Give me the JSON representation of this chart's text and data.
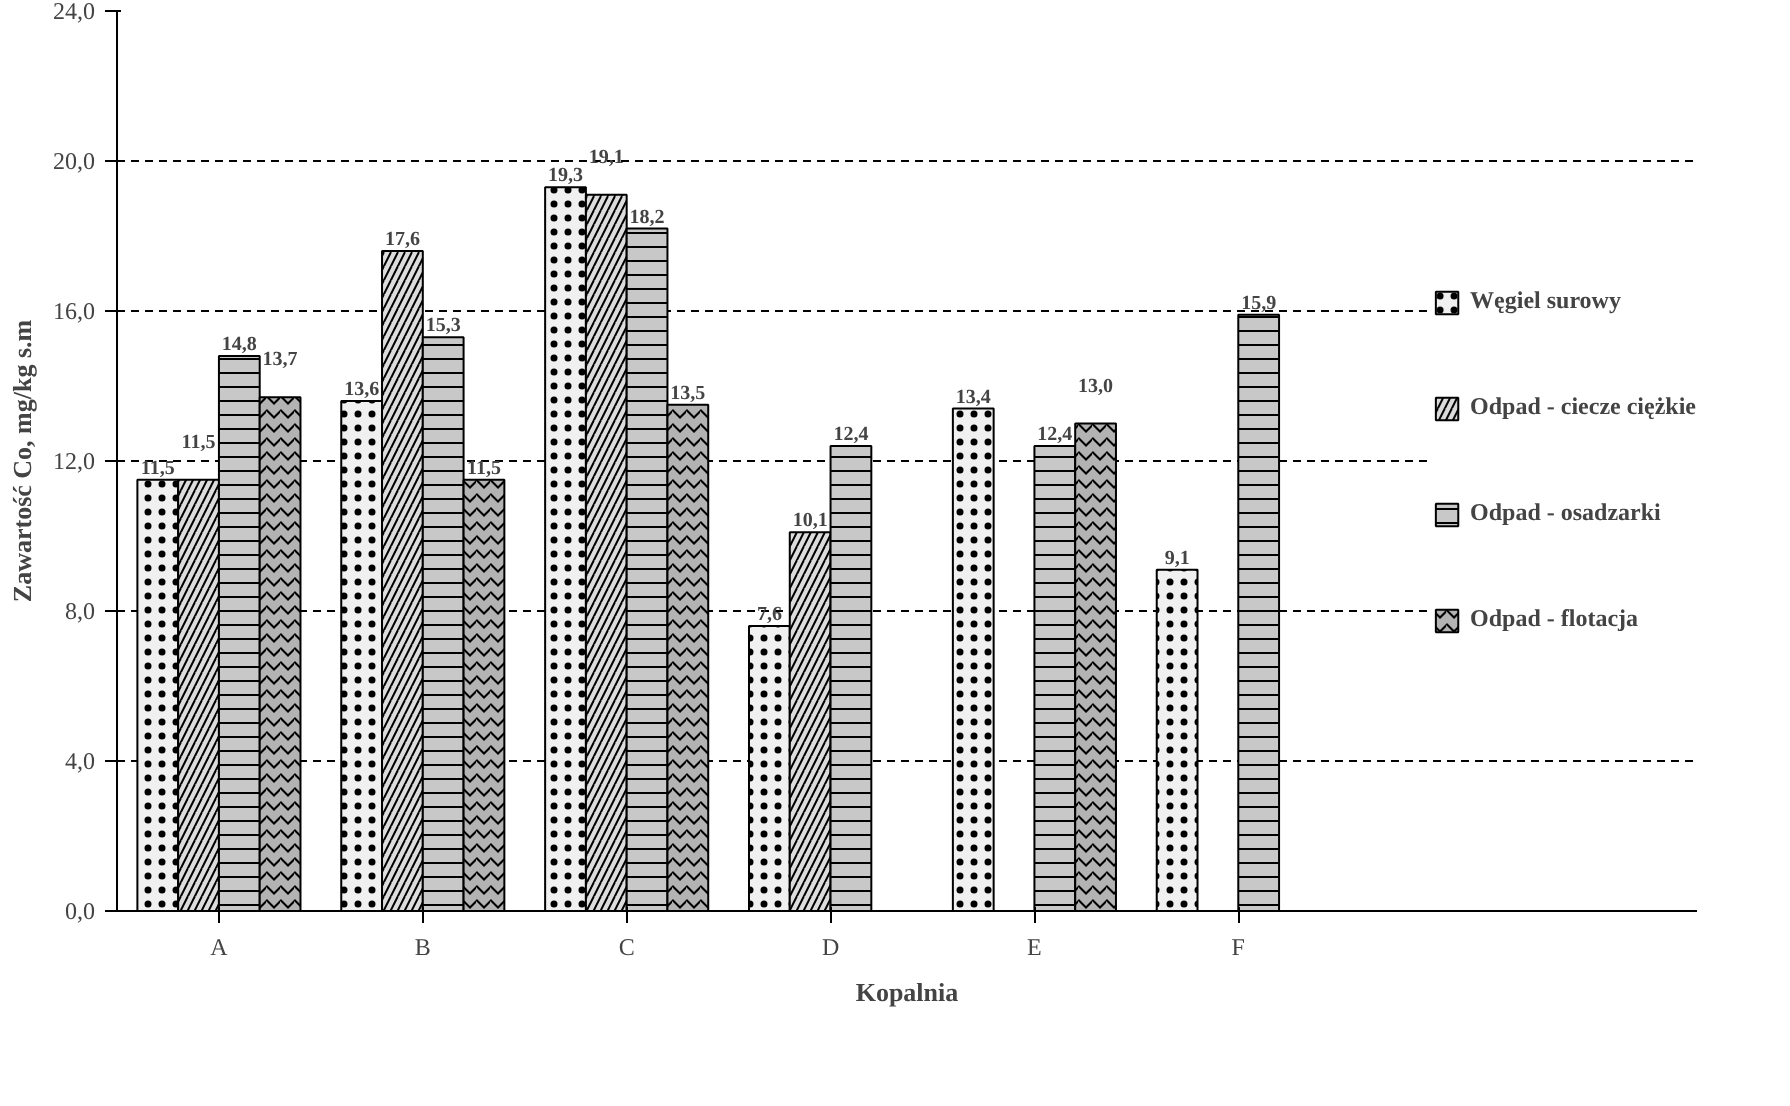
{
  "chart_data": {
    "type": "bar",
    "xlabel": "Kopalnia",
    "ylabel": "Zawartość Co, mg/kg s.m",
    "categories": [
      "A",
      "B",
      "C",
      "D",
      "E",
      "F"
    ],
    "series": [
      {
        "name": "Węgiel surowy",
        "color": "#f0f0f0",
        "values": [
          11.5,
          13.6,
          19.3,
          7.6,
          13.4,
          9.1
        ],
        "value_labels": [
          "11,5",
          "13,6",
          "19,3",
          "7,6",
          "13,4",
          "9,1"
        ]
      },
      {
        "name": "Odpad - ciecze ciężkie",
        "color": "#dcdcdc",
        "values": [
          11.5,
          17.6,
          19.1,
          10.1,
          null,
          null
        ],
        "value_labels": [
          "11,5",
          "17,6",
          "19,1",
          "10,1",
          null,
          null
        ]
      },
      {
        "name": "Odpad - osadzarki",
        "color": "#c8c8c8",
        "values": [
          14.8,
          15.3,
          18.2,
          12.4,
          12.4,
          15.9
        ],
        "value_labels": [
          "14,8",
          "15,3",
          "18,2",
          "12,4",
          "12,4",
          "15,9"
        ]
      },
      {
        "name": "Odpad - flotacja",
        "color": "#b3b3b3",
        "values": [
          13.7,
          11.5,
          13.5,
          null,
          13.0,
          null
        ],
        "value_labels": [
          "13,7",
          "11,5",
          "13,5",
          null,
          "13,0",
          null
        ]
      }
    ],
    "ylim": [
      0,
      24
    ],
    "yticks": [
      {
        "value": 0,
        "label": "0,0"
      },
      {
        "value": 4,
        "label": "4,0"
      },
      {
        "value": 8,
        "label": "8,0"
      },
      {
        "value": 12,
        "label": "12,0"
      },
      {
        "value": 16,
        "label": "16,0"
      },
      {
        "value": 20,
        "label": "20,0"
      },
      {
        "value": 24,
        "label": "24,0"
      }
    ],
    "grid": "y",
    "legend": "right"
  }
}
